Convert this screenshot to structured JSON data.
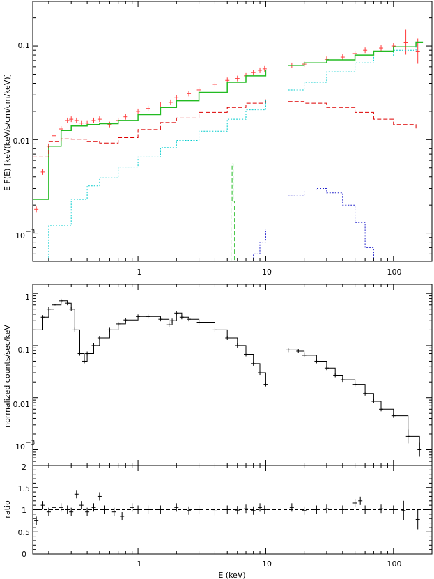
{
  "figure": {
    "panels": {
      "top": {
        "ylabel": "E F(E)  [keV(keV/s/cm/cm/keV)]",
        "y_ticks": [
          "0.1",
          "0.01",
          "10"
        ],
        "y_tick_exponents": [
          "",
          "",
          "−3"
        ],
        "x_ticks": [
          "1",
          "10",
          "100"
        ]
      },
      "middle": {
        "ylabel": "normalized counts/sec/keV",
        "y_ticks": [
          "1",
          "0.1",
          "0.01",
          "10"
        ],
        "y_tick_exponents": [
          "",
          "",
          "",
          "−3"
        ]
      },
      "bottom": {
        "ylabel": "ratio",
        "y_ticks": [
          "0",
          "0.5",
          "1",
          "1.5",
          "2"
        ],
        "x_ticks": [
          "1",
          "10",
          "100"
        ],
        "xlabel": "E (keV)"
      }
    },
    "colors": {
      "data_top": "#ff3c3c",
      "total_model": "#22bb22",
      "reflection": "#dd0000",
      "powerlaw": "#00cccc",
      "line": "#22bb22",
      "hard_component": "#2222cc",
      "counts": "#000000"
    }
  },
  "chart_data": [
    {
      "type": "line",
      "panel": "unfolded spectrum",
      "title": "",
      "xlabel": "",
      "ylabel": "E F(E)  [keV(keV/s/cm/cm/keV)]",
      "xscale": "log",
      "yscale": "log",
      "xlim": [
        0.15,
        200
      ],
      "ylim": [
        0.0005,
        0.3
      ],
      "series": [
        {
          "style": "data",
          "color": "red",
          "x": [
            0.16,
            0.18,
            0.2,
            0.22,
            0.25,
            0.28,
            0.3,
            0.33,
            0.36,
            0.4,
            0.45,
            0.5,
            0.6,
            0.7,
            0.8,
            1.0,
            1.2,
            1.5,
            1.8,
            2.0,
            2.5,
            3.0,
            4.0,
            5.0,
            6.0,
            7.0,
            8.0,
            9.0,
            9.8,
            16,
            20,
            30,
            40,
            50,
            60,
            80,
            100,
            125,
            155
          ],
          "y": [
            0.0018,
            0.0045,
            0.0085,
            0.011,
            0.013,
            0.016,
            0.0165,
            0.016,
            0.015,
            0.015,
            0.016,
            0.0165,
            0.0145,
            0.016,
            0.0175,
            0.02,
            0.0215,
            0.0235,
            0.025,
            0.028,
            0.031,
            0.034,
            0.039,
            0.043,
            0.045,
            0.048,
            0.052,
            0.055,
            0.057,
            0.062,
            0.064,
            0.072,
            0.076,
            0.083,
            0.09,
            0.095,
            0.1,
            0.11,
            0.088
          ]
        },
        {
          "style": "model",
          "color": "green",
          "x": [
            0.15,
            0.2,
            0.25,
            0.3,
            0.4,
            0.5,
            0.7,
            1.0,
            1.5,
            2,
            3,
            5,
            7,
            10,
            15,
            20,
            30,
            50,
            70,
            100,
            150,
            170
          ],
          "y": [
            0.0023,
            0.0085,
            0.0125,
            0.014,
            0.0145,
            0.0148,
            0.016,
            0.0185,
            0.022,
            0.026,
            0.032,
            0.041,
            0.048,
            0.055,
            0.062,
            0.066,
            0.071,
            0.08,
            0.088,
            0.098,
            0.11,
            0.11
          ]
        },
        {
          "style": "component",
          "color": "red",
          "x": [
            0.15,
            0.2,
            0.25,
            0.3,
            0.4,
            0.5,
            0.7,
            1.0,
            1.5,
            2,
            3,
            5,
            7,
            10,
            15,
            20,
            30,
            50,
            70,
            100,
            150
          ],
          "y": [
            0.0065,
            0.0095,
            0.0102,
            0.0101,
            0.0095,
            0.0092,
            0.0105,
            0.0128,
            0.0152,
            0.017,
            0.0195,
            0.022,
            0.0245,
            0.027,
            0.0255,
            0.0245,
            0.022,
            0.0195,
            0.0165,
            0.0145,
            0.0125
          ]
        },
        {
          "style": "component",
          "color": "cyan",
          "x": [
            0.15,
            0.2,
            0.3,
            0.4,
            0.5,
            0.7,
            1.0,
            1.5,
            2,
            3,
            5,
            7,
            10,
            15,
            20,
            30,
            50,
            70,
            100,
            150
          ],
          "y": [
            0.0005,
            0.0012,
            0.0023,
            0.0032,
            0.0039,
            0.0051,
            0.0065,
            0.0082,
            0.0098,
            0.0123,
            0.0165,
            0.0208,
            0.0268,
            0.034,
            0.041,
            0.053,
            0.066,
            0.078,
            0.09,
            0.1
          ]
        },
        {
          "style": "component",
          "color": "green",
          "x": [
            5.2,
            5.35,
            5.45,
            5.55,
            5.7
          ],
          "y": [
            0.0005,
            0.0022,
            0.0055,
            0.0022,
            0.0005
          ]
        },
        {
          "style": "component",
          "color": "blue",
          "x": [
            7.2,
            8,
            9,
            10,
            15,
            20,
            25,
            30,
            40,
            50,
            60,
            70
          ],
          "y": [
            0.0005,
            0.0006,
            0.0008,
            0.0011,
            0.0025,
            0.0029,
            0.003,
            0.0027,
            0.002,
            0.0013,
            0.0007,
            0.0005
          ]
        }
      ]
    },
    {
      "type": "line",
      "panel": "counts spectrum",
      "title": "",
      "xlabel": "",
      "ylabel": "normalized counts/sec/keV",
      "xscale": "log",
      "yscale": "log",
      "xlim": [
        0.15,
        200
      ],
      "ylim": [
        0.0005,
        1.5
      ],
      "series": [
        {
          "style": "data+model",
          "color": "black",
          "x": [
            0.15,
            0.18,
            0.2,
            0.22,
            0.25,
            0.28,
            0.3,
            0.32,
            0.35,
            0.38,
            0.4,
            0.45,
            0.5,
            0.6,
            0.7,
            0.8,
            1.0,
            1.2,
            1.5,
            1.75,
            1.85,
            2.0,
            2.2,
            2.5,
            3,
            4,
            5,
            6,
            7,
            8,
            9,
            10
          ],
          "y": [
            0.2,
            0.35,
            0.5,
            0.6,
            0.72,
            0.65,
            0.5,
            0.2,
            0.07,
            0.05,
            0.07,
            0.1,
            0.14,
            0.2,
            0.26,
            0.31,
            0.36,
            0.36,
            0.32,
            0.25,
            0.3,
            0.42,
            0.35,
            0.32,
            0.28,
            0.2,
            0.14,
            0.1,
            0.068,
            0.045,
            0.03,
            0.018
          ]
        },
        {
          "style": "data+model",
          "color": "black",
          "x": [
            15,
            18,
            20,
            25,
            30,
            35,
            40,
            50,
            60,
            70,
            80,
            100,
            130,
            160
          ],
          "y": [
            0.082,
            0.078,
            0.065,
            0.05,
            0.037,
            0.027,
            0.022,
            0.018,
            0.012,
            0.0085,
            0.006,
            0.0045,
            0.0018,
            0.001
          ]
        }
      ]
    },
    {
      "type": "scatter",
      "panel": "ratio",
      "title": "",
      "xlabel": "E (keV)",
      "ylabel": "ratio",
      "xscale": "log",
      "xlim": [
        0.15,
        200
      ],
      "ylim": [
        0,
        2
      ],
      "reference_line": 1,
      "series": [
        {
          "style": "data",
          "color": "black",
          "x": [
            0.16,
            0.18,
            0.2,
            0.22,
            0.25,
            0.28,
            0.3,
            0.33,
            0.36,
            0.4,
            0.45,
            0.5,
            0.55,
            0.65,
            0.75,
            0.9,
            1.0,
            1.2,
            1.5,
            2,
            2.5,
            3,
            4,
            5,
            6,
            7,
            8,
            9,
            9.8,
            16,
            20,
            25,
            30,
            40,
            50,
            55,
            60,
            80,
            100,
            120,
            155
          ],
          "y": [
            0.75,
            1.1,
            0.95,
            1.05,
            1.05,
            1.0,
            0.95,
            1.35,
            1.1,
            0.95,
            1.05,
            1.3,
            1.0,
            0.95,
            0.85,
            1.05,
            1.0,
            1.0,
            1.0,
            1.05,
            0.98,
            1.0,
            0.97,
            1.0,
            0.99,
            1.02,
            0.98,
            1.05,
            1.0,
            1.05,
            0.98,
            1.0,
            1.02,
            1.0,
            1.15,
            1.2,
            1.0,
            1.02,
            1.0,
            0.98,
            0.78
          ]
        }
      ]
    }
  ]
}
